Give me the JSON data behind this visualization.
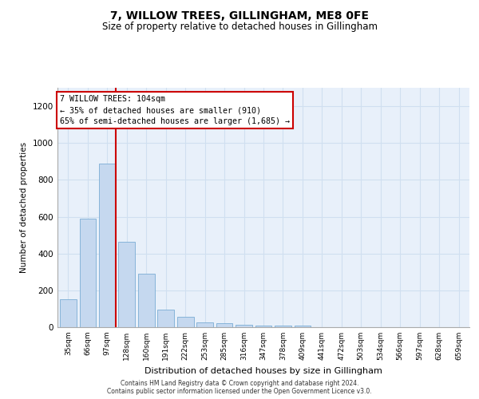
{
  "title": "7, WILLOW TREES, GILLINGHAM, ME8 0FE",
  "subtitle": "Size of property relative to detached houses in Gillingham",
  "xlabel": "Distribution of detached houses by size in Gillingham",
  "ylabel": "Number of detached properties",
  "categories": [
    "35sqm",
    "66sqm",
    "97sqm",
    "128sqm",
    "160sqm",
    "191sqm",
    "222sqm",
    "253sqm",
    "285sqm",
    "316sqm",
    "347sqm",
    "378sqm",
    "409sqm",
    "441sqm",
    "472sqm",
    "503sqm",
    "534sqm",
    "566sqm",
    "597sqm",
    "628sqm",
    "659sqm"
  ],
  "values": [
    152,
    590,
    890,
    465,
    290,
    95,
    55,
    27,
    20,
    15,
    10,
    10,
    10,
    0,
    0,
    0,
    0,
    0,
    0,
    0,
    0
  ],
  "bar_color": "#c5d8ef",
  "bar_edge_color": "#7aadd4",
  "red_line_x": 2.45,
  "annotation_text": "7 WILLOW TREES: 104sqm\n← 35% of detached houses are smaller (910)\n65% of semi-detached houses are larger (1,685) →",
  "annotation_box_color": "#ffffff",
  "annotation_box_edge": "#cc0000",
  "grid_color": "#d0dff0",
  "bg_color": "#e8f0fa",
  "ylim": [
    0,
    1300
  ],
  "yticks": [
    0,
    200,
    400,
    600,
    800,
    1000,
    1200
  ],
  "footer_line1": "Contains HM Land Registry data © Crown copyright and database right 2024.",
  "footer_line2": "Contains public sector information licensed under the Open Government Licence v3.0."
}
